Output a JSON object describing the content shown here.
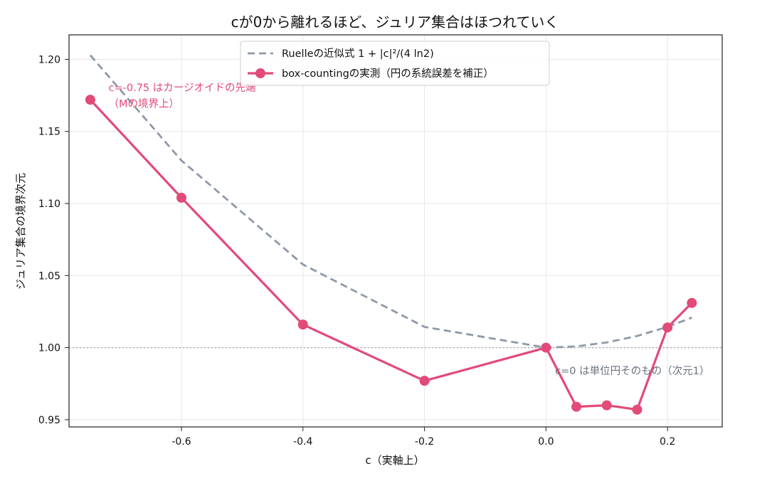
{
  "chart_data": {
    "type": "line",
    "title": "cが0から離れるほど、ジュリア集合はほつれていく",
    "xlabel": "c（実軸上）",
    "ylabel": "ジュリア集合の境界次元",
    "xlim": [
      -0.785,
      0.29
    ],
    "ylim": [
      0.945,
      1.217
    ],
    "x_ticks": [
      -0.6,
      -0.4,
      -0.2,
      0.0,
      0.2
    ],
    "x_tick_labels": [
      "-0.6",
      "-0.4",
      "-0.2",
      "0.0",
      "0.2"
    ],
    "y_ticks": [
      0.95,
      1.0,
      1.05,
      1.1,
      1.15,
      1.2
    ],
    "y_tick_labels": [
      "0.95",
      "1.00",
      "1.05",
      "1.10",
      "1.15",
      "1.20"
    ],
    "grid": true,
    "legend_position": "top-center",
    "reference_line": {
      "y": 1.0,
      "style": "dotted",
      "color": "#b0b4bb"
    },
    "series": [
      {
        "name": "Ruelleの近似式  1 + |c|²/(4 ln2)",
        "style": "dashed",
        "color": "#8f99a8",
        "x": [
          -0.75,
          -0.6,
          -0.4,
          -0.2,
          0.0,
          0.05,
          0.1,
          0.15,
          0.2,
          0.24
        ],
        "y": [
          1.2029,
          1.1298,
          1.0577,
          1.0144,
          1.0,
          1.0009,
          1.0036,
          1.0081,
          1.0144,
          1.0208
        ]
      },
      {
        "name": "box-countingの実測（円の系統誤差を補正）",
        "style": "solid-markers",
        "color": "#e24a78",
        "x": [
          -0.75,
          -0.6,
          -0.4,
          -0.2,
          0.0,
          0.05,
          0.1,
          0.15,
          0.2,
          0.24
        ],
        "y": [
          1.172,
          1.104,
          1.016,
          0.977,
          1.0,
          0.959,
          0.96,
          0.957,
          1.014,
          1.031
        ]
      }
    ],
    "annotations": [
      {
        "text": "c=-0.75 はカージオイドの先端",
        "x": -0.72,
        "y": 1.178,
        "color": "#e24a78"
      },
      {
        "text": "（Mの境界上）",
        "x": -0.72,
        "y": 1.167,
        "color": "#e24a78"
      },
      {
        "text": "c=0 は単位円そのもの（次元1）",
        "x": 0.015,
        "y": 0.9815,
        "color": "#6b7280"
      }
    ]
  }
}
